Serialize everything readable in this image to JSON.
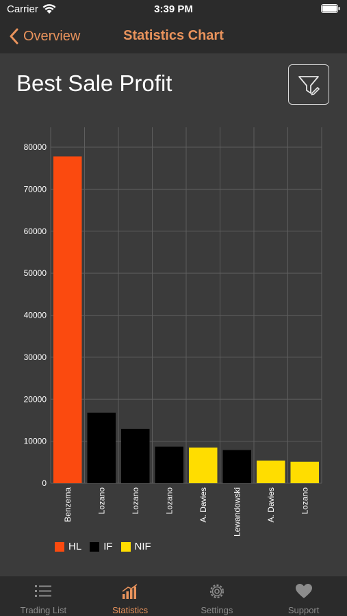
{
  "status_bar": {
    "carrier": "Carrier",
    "time": "3:39 PM"
  },
  "nav": {
    "back_label": "Overview",
    "title": "Statistics Chart"
  },
  "colors": {
    "accent": "#e9935c",
    "hl": "#fb4a0f",
    "if": "#000000",
    "nif": "#ffdd00"
  },
  "chart_data": {
    "type": "bar",
    "title": "Best Sale Profit",
    "xlabel": "",
    "ylabel": "",
    "ylim": [
      0,
      80000
    ],
    "yticks": [
      0,
      10000,
      20000,
      30000,
      40000,
      50000,
      60000,
      70000,
      80000
    ],
    "grid": true,
    "legend_position": "bottom-left",
    "categories": [
      "Benzema",
      "Lozano",
      "Lozano",
      "Lozano",
      "A. Davies",
      "Lewandowski",
      "A. Davies",
      "Lozano"
    ],
    "values": [
      77800,
      16800,
      12900,
      8700,
      8500,
      7900,
      5400,
      5100
    ],
    "groups": [
      "HL",
      "IF",
      "IF",
      "IF",
      "NIF",
      "IF",
      "NIF",
      "NIF"
    ],
    "legend": [
      {
        "name": "HL",
        "color": "#fb4a0f"
      },
      {
        "name": "IF",
        "color": "#000000"
      },
      {
        "name": "NIF",
        "color": "#ffdd00"
      }
    ]
  },
  "tabbar": {
    "items": [
      {
        "label": "Trading List",
        "icon": "list-icon",
        "active": false
      },
      {
        "label": "Statistics",
        "icon": "bar-chart-icon",
        "active": true
      },
      {
        "label": "Settings",
        "icon": "gear-icon",
        "active": false
      },
      {
        "label": "Support",
        "icon": "heart-icon",
        "active": false
      }
    ]
  }
}
